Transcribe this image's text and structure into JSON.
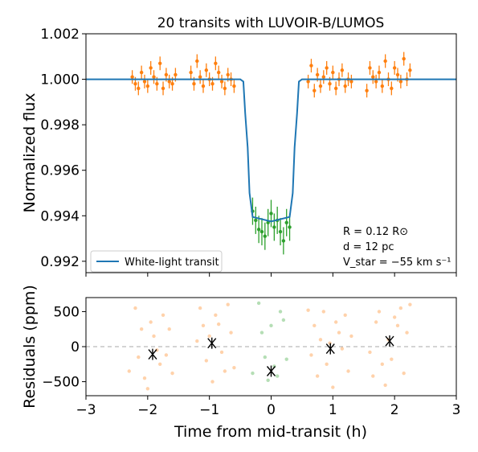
{
  "chart_data": [
    {
      "type": "line",
      "title": "20 transits with LUVOIR-B/LUMOS",
      "ylabel": "Normalized flux",
      "xlim": [
        -3,
        3
      ],
      "ylim": [
        0.9915,
        1.002
      ],
      "yticks": [
        0.992,
        0.994,
        0.996,
        0.998,
        1.0,
        1.002
      ],
      "ytick_labels": [
        "0.992",
        "0.994",
        "0.996",
        "0.998",
        "1.000",
        "1.002"
      ],
      "legend": {
        "position": "bottom-left",
        "entries": [
          "White-light transit"
        ]
      },
      "annotations": [
        "R = 0.12 R⊙",
        "d = 12 pc",
        "V_star = −55 km s⁻¹"
      ],
      "colors": {
        "model": "#1f77b4",
        "out_of_transit": "#ff7f0e",
        "in_transit": "#2ca02c"
      },
      "series": [
        {
          "name": "White-light transit",
          "x": [
            -3.0,
            -0.5,
            -0.45,
            -0.42,
            -0.38,
            -0.35,
            -0.3,
            0.0,
            0.3,
            0.35,
            0.38,
            0.42,
            0.45,
            0.5,
            3.0
          ],
          "y": [
            1.0,
            1.0,
            0.9999,
            0.9985,
            0.997,
            0.995,
            0.99395,
            0.99375,
            0.99395,
            0.995,
            0.997,
            0.9985,
            0.9999,
            1.0,
            1.0
          ]
        },
        {
          "x": [
            -2.25,
            -2.2,
            -2.15,
            -2.1,
            -2.05,
            -2.0,
            -1.95,
            -1.9,
            -1.85,
            -1.8,
            -1.75,
            -1.7,
            -1.65,
            -1.6,
            -1.55,
            -1.3,
            -1.25,
            -1.2,
            -1.15,
            -1.1,
            -1.05,
            -1.0,
            -0.95,
            -0.9,
            -0.85,
            -0.8,
            -0.75,
            -0.7,
            -0.65,
            -0.6,
            0.6,
            0.65,
            0.7,
            0.75,
            0.8,
            0.85,
            0.9,
            0.95,
            1.0,
            1.05,
            1.1,
            1.15,
            1.2,
            1.25,
            1.3,
            1.55,
            1.6,
            1.65,
            1.7,
            1.75,
            1.8,
            1.85,
            1.9,
            1.95,
            2.0,
            2.05,
            2.1,
            2.15,
            2.2,
            2.25
          ],
          "y": [
            1.0001,
            0.9998,
            0.9996,
            1.0003,
            0.9999,
            0.9997,
            1.0005,
            1.0001,
            0.9998,
            1.0007,
            0.9996,
            1.0002,
            0.9999,
            0.9998,
            1.0002,
            1.0003,
            0.9998,
            1.0008,
            1.0001,
            0.9997,
            1.0004,
            1.0,
            0.9998,
            1.0007,
            1.0003,
            0.9999,
            0.9996,
            1.0002,
            1.0,
            0.9997,
            0.9999,
            1.0006,
            0.9995,
            1.0002,
            0.9997,
            1.0001,
            1.0005,
            0.9998,
            1.0003,
            0.9996,
            1.0,
            1.0004,
            0.9997,
            1.0,
            0.9999,
            0.9995,
            1.0005,
            1.0001,
            0.9999,
            1.0003,
            0.9997,
            1.0008,
            1.0,
            0.9996,
            1.0005,
            1.0002,
            0.9999,
            1.0009,
            1.0,
            1.0004
          ],
          "err": 0.0003
        },
        {
          "x": [
            -0.3,
            -0.25,
            -0.2,
            -0.15,
            -0.1,
            -0.05,
            0.0,
            0.05,
            0.1,
            0.15,
            0.2,
            0.25,
            0.3
          ],
          "y": [
            0.9942,
            0.9938,
            0.9934,
            0.9933,
            0.9931,
            0.9937,
            0.9941,
            0.9935,
            0.9938,
            0.9933,
            0.9929,
            0.9937,
            0.9935
          ],
          "err": 0.0006
        }
      ]
    },
    {
      "type": "scatter",
      "xlabel": "Time from mid-transit (h)",
      "ylabel": "Residuals (ppm)",
      "xlim": [
        -3,
        3
      ],
      "ylim": [
        -700,
        700
      ],
      "xticks": [
        -3,
        -2,
        -1,
        0,
        1,
        2,
        3
      ],
      "xtick_labels": [
        "−3",
        "−2",
        "−1",
        "0",
        "1",
        "2",
        "3"
      ],
      "yticks": [
        -500,
        0,
        500
      ],
      "ytick_labels": [
        "−500",
        "0",
        "500"
      ],
      "reference_line": 0,
      "series": [
        {
          "x": [
            -2.3,
            -2.2,
            -2.15,
            -2.1,
            -2.05,
            -2.0,
            -1.95,
            -1.9,
            -1.85,
            -1.8,
            -1.75,
            -1.7,
            -1.65,
            -1.6,
            -1.2,
            -1.15,
            -1.1,
            -1.05,
            -1.0,
            -0.95,
            -0.9,
            -0.85,
            -0.8,
            -0.75,
            -0.7,
            -0.65,
            -0.6,
            0.6,
            0.65,
            0.7,
            0.75,
            0.8,
            0.85,
            0.9,
            0.95,
            1.0,
            1.05,
            1.1,
            1.15,
            1.2,
            1.25,
            1.3,
            1.6,
            1.65,
            1.7,
            1.75,
            1.8,
            1.85,
            1.9,
            1.95,
            2.0,
            2.05,
            2.1,
            2.15,
            2.2,
            2.25
          ],
          "y": [
            -350,
            550,
            -150,
            250,
            -450,
            -600,
            350,
            150,
            -50,
            -250,
            450,
            -120,
            250,
            -380,
            80,
            550,
            300,
            -200,
            150,
            -500,
            450,
            320,
            -80,
            -350,
            600,
            200,
            -300,
            520,
            -120,
            300,
            -420,
            100,
            500,
            -250,
            50,
            -580,
            350,
            200,
            -30,
            450,
            -350,
            150,
            -80,
            -420,
            350,
            500,
            -250,
            -550,
            100,
            -180,
            420,
            300,
            550,
            -380,
            200,
            600
          ],
          "role": "out_of_transit"
        },
        {
          "x": [
            -0.3,
            -0.2,
            -0.15,
            -0.1,
            -0.05,
            0.0,
            0.05,
            0.1,
            0.15,
            0.2,
            0.25
          ],
          "y": [
            -380,
            620,
            200,
            -150,
            -480,
            300,
            -280,
            -420,
            500,
            380,
            -180
          ],
          "role": "in_transit"
        },
        {
          "x": [
            -1.92,
            -0.96,
            0.0,
            0.96,
            1.92
          ],
          "y": [
            -110,
            50,
            -350,
            -30,
            80
          ],
          "err": 80,
          "role": "binned"
        }
      ]
    }
  ]
}
